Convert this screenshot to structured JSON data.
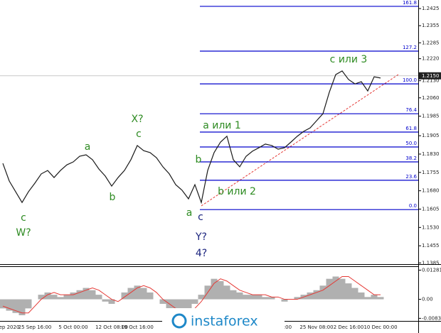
{
  "chart_data": [
    {
      "type": "line",
      "categories": [
        null,
        "ep 2020",
        null,
        null,
        null,
        "25 Sep 16:00",
        null,
        null,
        null,
        null,
        null,
        "5 Oct 00:00",
        null,
        null,
        null,
        null,
        null,
        "12 Oct 08:00",
        null,
        null,
        null,
        "19 Oct 16:00",
        null,
        null,
        null,
        null,
        null,
        null,
        null,
        null,
        null,
        null,
        null,
        null,
        null,
        null,
        null,
        null,
        null,
        null,
        null,
        null,
        null,
        null,
        "00:00",
        null,
        null,
        null,
        null,
        "25 Nov 08:00",
        null,
        null,
        null,
        null,
        "2 Dec 16:00",
        null,
        null,
        null,
        null,
        "10 Dec 00:00"
      ],
      "series": [
        {
          "color": "#1a1a1a",
          "values": [
            1.1792,
            1.172,
            1.1676,
            1.1632,
            1.1676,
            1.1711,
            1.1749,
            1.1763,
            1.1734,
            1.1763,
            1.1786,
            1.1798,
            1.1821,
            1.1827,
            1.1807,
            1.1769,
            1.174,
            1.1699,
            1.1734,
            1.1763,
            1.1807,
            1.1865,
            1.1844,
            1.1836,
            1.1815,
            1.1778,
            1.1749,
            1.1705,
            1.1682,
            1.1647,
            1.1705,
            1.1632,
            1.1763,
            1.1836,
            1.1879,
            1.1903,
            1.1807,
            1.1778,
            1.1821,
            1.1842,
            1.1856,
            1.1871,
            1.1865,
            1.185,
            1.1856,
            1.1879,
            1.1903,
            1.1923,
            1.1937,
            1.1966,
            1.1995,
            1.2083,
            1.2155,
            1.217,
            1.2135,
            1.2117,
            1.2126,
            1.2088,
            1.2146,
            1.2141
          ]
        }
      ],
      "ylim": [
        1.138,
        1.246
      ],
      "yticks": [
        1.2425,
        1.2355,
        1.2285,
        {
          "value": 1.222,
          "label": "1.2220"
        },
        {
          "value": 1.213,
          "label": "1.2130"
        },
        {
          "value": 1.206,
          "label": "1.2060"
        },
        1.1985,
        1.1905,
        {
          "value": 1.183,
          "label": "1.1830"
        },
        1.1755,
        {
          "value": 1.168,
          "label": "1.1680"
        },
        1.1605,
        {
          "value": 1.153,
          "label": "1.1530"
        },
        1.1455,
        1.1385
      ],
      "current_price": {
        "value": 1.215,
        "label": "1.2150"
      },
      "fib_color": "#0000cc",
      "fib_levels": [
        {
          "ratio": 161.8,
          "price": 1.2434
        },
        {
          "ratio": 127.2,
          "price": 1.2251
        },
        {
          "ratio": {
            "value": 100,
            "label": "100.0"
          },
          "price": 1.2117
        },
        {
          "ratio": 76.4,
          "price": 1.1995
        },
        {
          "ratio": 61.8,
          "price": 1.192
        },
        {
          "ratio": {
            "value": 50,
            "label": "50.0"
          },
          "price": 1.1859
        },
        {
          "ratio": 38.2,
          "price": 1.1798
        },
        {
          "ratio": 23.6,
          "price": 1.1723
        },
        {
          "ratio": {
            "value": 0,
            "label": "0.0"
          },
          "price": 1.1603
        }
      ],
      "annotations": [
        {
          "text": "X?",
          "color": "#2e8b22"
        },
        {
          "text": "c",
          "color": "#2e8b22"
        },
        {
          "text": "a",
          "color": "#2e8b22"
        },
        {
          "text": "b",
          "color": "#2e8b22"
        },
        {
          "text": "c",
          "color": "#2e8b22"
        },
        {
          "text": "W?",
          "color": "#2e8b22"
        },
        {
          "text": "a",
          "color": "#2e8b22"
        },
        {
          "text": "b",
          "color": "#2e8b22"
        },
        {
          "text": "a или 1",
          "color": "#2e8b22"
        },
        {
          "text": "b или 2",
          "color": "#2e8b22"
        },
        {
          "text": "c или 3",
          "color": "#2e8b22"
        },
        {
          "text": "c",
          "color": "#1a237e"
        },
        {
          "text": "Y?",
          "color": "#1a237e"
        },
        {
          "text": "4?",
          "color": "#1a237e"
        }
      ],
      "watermark": "instaforex"
    },
    {
      "type": "bar",
      "series": [
        {
          "color": "#b0b0b0",
          "values": [
            -0.004,
            -0.005,
            -0.006,
            -0.007,
            -0.004,
            0.0,
            0.002,
            0.003,
            0.002,
            0.001,
            0.002,
            0.003,
            0.004,
            0.005,
            0.004,
            0.002,
            -0.001,
            -0.002,
            0.0,
            0.003,
            0.005,
            0.006,
            0.005,
            0.003,
            0.0,
            -0.002,
            -0.004,
            -0.005,
            -0.004,
            -0.005,
            -0.002,
            0.002,
            0.006,
            0.009,
            0.008,
            0.006,
            0.004,
            0.003,
            0.002,
            0.002,
            0.002,
            0.001,
            0.001,
            0.0,
            -0.001,
            0.0,
            0.001,
            0.002,
            0.003,
            0.004,
            0.006,
            0.009,
            0.01,
            0.009,
            0.007,
            0.005,
            0.003,
            0.001,
            0.002,
            0.001
          ]
        },
        {
          "type": "line",
          "color": "#e53935",
          "values": [
            -0.003,
            -0.004,
            -0.005,
            -0.006,
            -0.006,
            -0.003,
            0.0,
            0.002,
            0.003,
            0.002,
            0.002,
            0.002,
            0.003,
            0.004,
            0.005,
            0.004,
            0.002,
            0.0,
            -0.001,
            0.001,
            0.003,
            0.005,
            0.006,
            0.005,
            0.003,
            0.0,
            -0.002,
            -0.004,
            -0.005,
            -0.005,
            -0.004,
            -0.001,
            0.003,
            0.007,
            0.009,
            0.008,
            0.006,
            0.004,
            0.003,
            0.002,
            0.002,
            0.002,
            0.001,
            0.001,
            0.0,
            0.0,
            0.0,
            0.001,
            0.002,
            0.003,
            0.004,
            0.006,
            0.008,
            0.01,
            0.01,
            0.008,
            0.006,
            0.004,
            0.002,
            0.002
          ]
        }
      ],
      "ylim": [
        -0.0095,
        0.0142
      ],
      "yticks": [
        0.01281,
        {
          "value": 0,
          "label": "0.00"
        },
        -0.00836
      ]
    }
  ]
}
